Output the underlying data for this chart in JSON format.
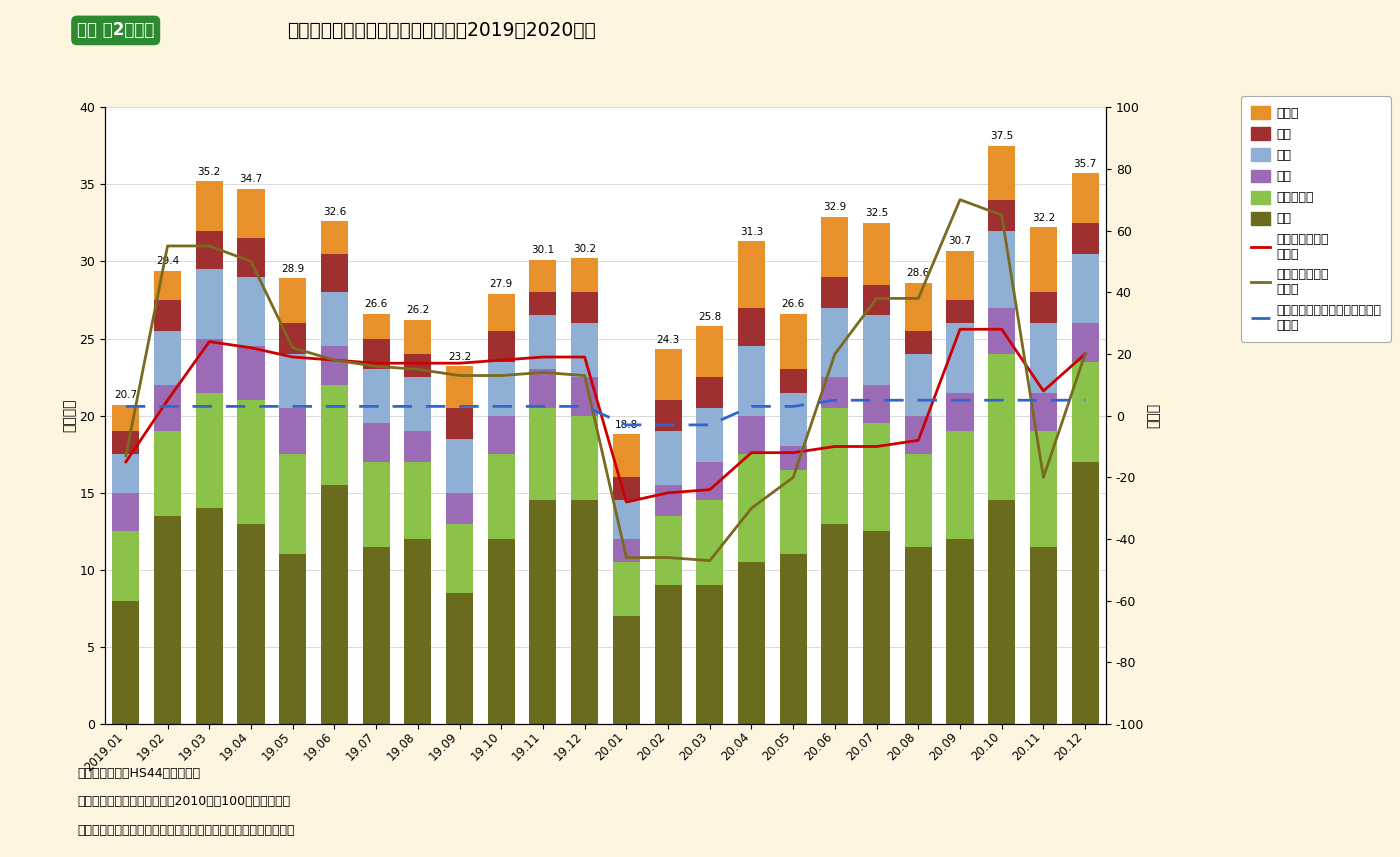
{
  "months": [
    "2019.01",
    "19.02",
    "19.03",
    "19.04",
    "19.05",
    "19.06",
    "19.07",
    "19.08",
    "19.09",
    "19.10",
    "19.11",
    "19.12",
    "20.01",
    "20.02",
    "20.03",
    "20.04",
    "20.05",
    "20.06",
    "20.07",
    "20.08",
    "20.09",
    "20.10",
    "20.11",
    "20.12"
  ],
  "totals": [
    20.7,
    29.4,
    35.2,
    34.7,
    28.9,
    32.6,
    26.6,
    26.2,
    23.2,
    27.9,
    30.1,
    30.2,
    18.8,
    24.3,
    25.8,
    31.3,
    26.6,
    32.9,
    32.5,
    28.6,
    30.7,
    37.5,
    32.2,
    35.7
  ],
  "china": [
    8.0,
    13.5,
    14.0,
    13.0,
    11.0,
    15.5,
    11.5,
    12.0,
    8.5,
    12.0,
    14.5,
    14.5,
    7.0,
    9.0,
    9.0,
    10.5,
    11.0,
    13.0,
    12.5,
    11.5,
    12.0,
    14.5,
    11.5,
    17.0
  ],
  "philippines": [
    4.5,
    5.5,
    7.5,
    8.0,
    6.5,
    6.5,
    5.5,
    5.0,
    4.5,
    5.5,
    6.0,
    5.5,
    3.5,
    4.5,
    5.5,
    7.0,
    5.5,
    7.5,
    7.0,
    6.0,
    7.0,
    9.5,
    7.5,
    6.5
  ],
  "korea": [
    2.5,
    3.0,
    3.5,
    3.5,
    3.0,
    2.5,
    2.5,
    2.0,
    2.0,
    2.5,
    2.5,
    2.5,
    1.5,
    2.0,
    2.5,
    2.5,
    1.5,
    2.0,
    2.5,
    2.5,
    2.5,
    3.0,
    2.5,
    2.5
  ],
  "usa": [
    2.5,
    3.5,
    4.5,
    4.5,
    3.5,
    3.5,
    3.5,
    3.5,
    3.5,
    3.5,
    3.5,
    3.5,
    2.5,
    3.5,
    3.5,
    4.5,
    3.5,
    4.5,
    4.5,
    4.0,
    4.5,
    5.0,
    4.5,
    4.5
  ],
  "taiwan": [
    1.5,
    2.0,
    2.5,
    2.5,
    2.0,
    2.5,
    2.0,
    1.5,
    2.0,
    2.0,
    1.5,
    2.0,
    1.5,
    2.0,
    2.0,
    2.5,
    1.5,
    2.0,
    2.0,
    1.5,
    1.5,
    2.0,
    2.0,
    2.0
  ],
  "others": [
    1.7,
    1.9,
    3.2,
    3.2,
    2.9,
    2.1,
    1.6,
    2.2,
    2.7,
    2.4,
    2.1,
    2.2,
    2.8,
    3.3,
    3.3,
    4.3,
    3.6,
    3.9,
    4.0,
    3.1,
    3.2,
    3.5,
    4.2,
    3.2
  ],
  "line_zentai": [
    -15,
    5,
    24,
    22,
    19,
    18,
    17,
    17,
    17,
    18,
    19,
    19,
    -28,
    -25,
    -24,
    -12,
    -12,
    -10,
    -10,
    -8,
    28,
    28,
    8,
    20
  ],
  "line_china": [
    -13,
    55,
    55,
    50,
    22,
    18,
    16,
    15,
    13,
    13,
    14,
    13,
    -46,
    -46,
    -47,
    -30,
    -20,
    20,
    38,
    38,
    70,
    65,
    -20,
    20
  ],
  "line_mfg": [
    3,
    3,
    3,
    3,
    3,
    3,
    3,
    3,
    3,
    3,
    3,
    3,
    -3,
    -3,
    -3,
    3,
    3,
    5,
    5,
    5,
    5,
    5,
    5,
    5
  ],
  "color_china": "#6b6b1e",
  "color_philippines": "#8bc34a",
  "color_korea": "#9b6bb5",
  "color_usa": "#8fafd4",
  "color_taiwan": "#a03030",
  "color_others": "#e8902a",
  "color_line_zentai": "#cc0000",
  "color_line_china": "#7a6a20",
  "color_line_mfg": "#3366cc",
  "background": "#fdf5e0",
  "title_box_color": "#2d8a30",
  "title_box_text": "資料 牔2２－３",
  "title_text": "我が国における木材輸出額の動向（2019～2020年）",
  "ylabel_left": "（億円）",
  "ylabel_right": "（％）",
  "legend_labels": [
    "その他",
    "台湾",
    "米国",
    "韙国",
    "フィリピン",
    "中国",
    "全体（前年比：\n右軸）",
    "中国（前年比：\n右軸）",
    "中国鉱工業生産指数（前年比：\n右軸）"
  ],
  "note1": "注１：輸出額はHS44類の合計。",
  "note2": "　２：中国鉱工業生産指数は2010年を100とした指数。",
  "note3": "資料：財務省「貳易統計」、中国国家統計局「鉱工業生産指数」"
}
